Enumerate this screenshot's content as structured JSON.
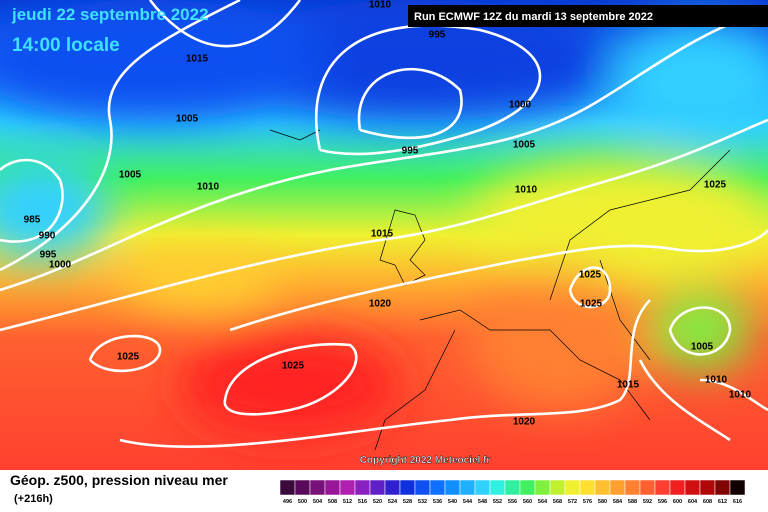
{
  "header": {
    "date": "jeudi 22 septembre 2022",
    "time": "14:00 locale",
    "run": "Run ECMWF 12Z du mardi 13 septembre 2022"
  },
  "isobar_labels": [
    "1010",
    "995",
    "1015",
    "1005",
    "1000",
    "995",
    "1005",
    "1005",
    "1010",
    "1010",
    "1025",
    "985",
    "990",
    "995",
    "1000",
    "1015",
    "1025",
    "1025",
    "1020",
    "1005",
    "1025",
    "1025",
    "1015",
    "1010",
    "1010",
    "1020"
  ],
  "copyright": "Copyright 2022 Meteociel.fr",
  "legend": {
    "title": "Géop. z500, pression niveau mer",
    "subtitle": "(+216h)",
    "scale": [
      "496",
      "500",
      "504",
      "508",
      "512",
      "516",
      "520",
      "524",
      "528",
      "532",
      "536",
      "540",
      "544",
      "548",
      "552",
      "556",
      "560",
      "564",
      "568",
      "572",
      "576",
      "580",
      "584",
      "588",
      "592",
      "596",
      "600",
      "604",
      "608",
      "612",
      "616"
    ],
    "colors": [
      "#3a0a3a",
      "#5a0a5a",
      "#7a107a",
      "#991599",
      "#b020b0",
      "#8a20c0",
      "#6020c8",
      "#3020d0",
      "#1030e0",
      "#1050f0",
      "#1070ff",
      "#1090ff",
      "#20b0ff",
      "#30d0ff",
      "#30f0e0",
      "#30f0a0",
      "#40f060",
      "#80f040",
      "#c0f030",
      "#f0f030",
      "#ffe030",
      "#ffc030",
      "#ffa030",
      "#ff8030",
      "#ff6030",
      "#ff4030",
      "#f02020",
      "#d01010",
      "#b00808",
      "#800404",
      "#100000"
    ]
  }
}
